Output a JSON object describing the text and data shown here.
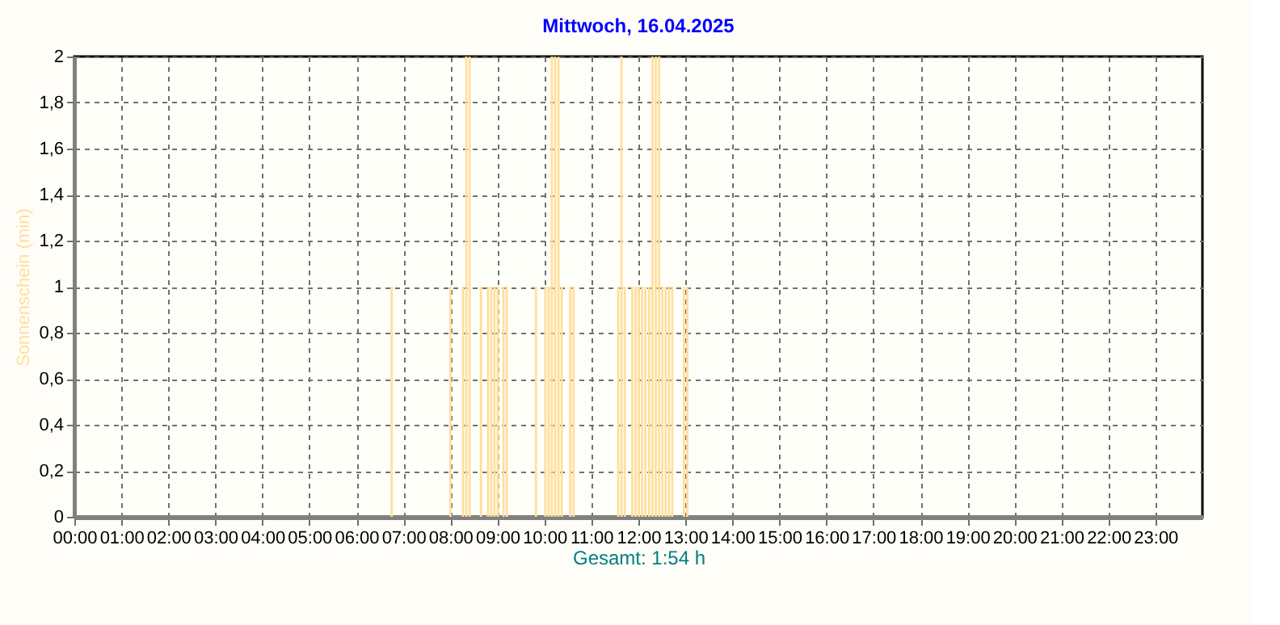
{
  "chart_data": {
    "type": "bar",
    "title": "Mittwoch, 16.04.2025",
    "xlabel": "Gesamt: 1:54 h",
    "ylabel": "Sonnenschein (min)",
    "x": [
      6.75,
      8.0,
      8.27,
      8.34,
      8.41,
      8.65,
      8.8,
      8.87,
      8.94,
      9.01,
      9.13,
      9.2,
      9.82,
      10.02,
      10.09,
      10.16,
      10.23,
      10.3,
      10.37,
      10.55,
      10.62,
      11.57,
      11.64,
      11.71,
      11.87,
      11.94,
      12.01,
      12.08,
      12.15,
      12.23,
      12.3,
      12.37,
      12.44,
      12.51,
      12.58,
      12.65,
      12.72,
      12.97,
      13.04
    ],
    "values": [
      1,
      1,
      1,
      2,
      2,
      1,
      1,
      1,
      1,
      1,
      1,
      1,
      1,
      1,
      1,
      2,
      2,
      2,
      1,
      1,
      1,
      1,
      2,
      1,
      1,
      1,
      1,
      1,
      1,
      1,
      2,
      2,
      2,
      1,
      1,
      1,
      1,
      1,
      1
    ],
    "color": "#ffdf9e",
    "xlim": [
      0,
      24
    ],
    "xticks": [
      {
        "value": 0,
        "label": "00:00"
      },
      {
        "value": 1,
        "label": "01:00"
      },
      {
        "value": 2,
        "label": "02:00"
      },
      {
        "value": 3,
        "label": "03:00"
      },
      {
        "value": 4,
        "label": "04:00"
      },
      {
        "value": 5,
        "label": "05:00"
      },
      {
        "value": 6,
        "label": "06:00"
      },
      {
        "value": 7,
        "label": "07:00"
      },
      {
        "value": 8,
        "label": "08:00"
      },
      {
        "value": 9,
        "label": "09:00"
      },
      {
        "value": 10,
        "label": "10:00"
      },
      {
        "value": 11,
        "label": "11:00"
      },
      {
        "value": 12,
        "label": "12:00"
      },
      {
        "value": 13,
        "label": "13:00"
      },
      {
        "value": 14,
        "label": "14:00"
      },
      {
        "value": 15,
        "label": "15:00"
      },
      {
        "value": 16,
        "label": "16:00"
      },
      {
        "value": 17,
        "label": "17:00"
      },
      {
        "value": 18,
        "label": "18:00"
      },
      {
        "value": 19,
        "label": "19:00"
      },
      {
        "value": 20,
        "label": "20:00"
      },
      {
        "value": 21,
        "label": "21:00"
      },
      {
        "value": 22,
        "label": "22:00"
      },
      {
        "value": 23,
        "label": "23:00"
      }
    ],
    "ylim": [
      0,
      2
    ],
    "yticks": [
      0,
      {
        "value": 0.2,
        "label": "0,2"
      },
      {
        "value": 0.4,
        "label": "0,4"
      },
      {
        "value": 0.6,
        "label": "0,6"
      },
      {
        "value": 0.8,
        "label": "0,8"
      },
      1,
      {
        "value": 1.2,
        "label": "1,2"
      },
      {
        "value": 1.4,
        "label": "1,4"
      },
      {
        "value": 1.6,
        "label": "1,6"
      },
      {
        "value": 1.8,
        "label": "1,8"
      },
      2
    ],
    "grid": true
  }
}
